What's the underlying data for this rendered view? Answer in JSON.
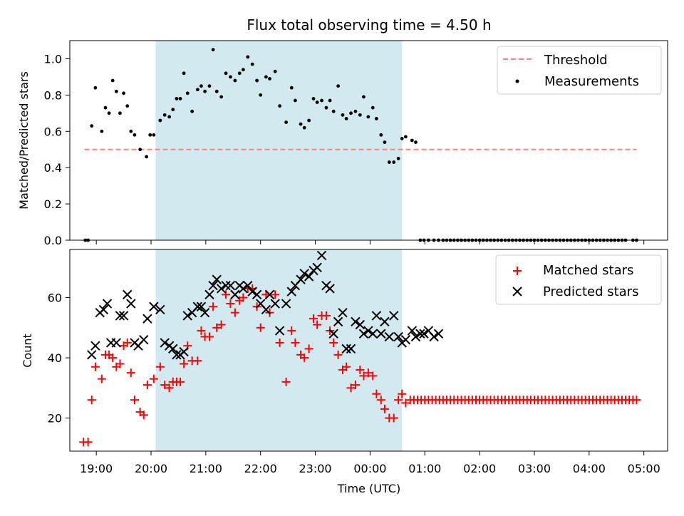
{
  "title": "Flux total observing time = 4.50 h",
  "chart_data": [
    {
      "type": "scatter",
      "ylabel": "Matched/Predicted stars",
      "xlabel": "",
      "ylim": [
        0,
        1.1
      ],
      "xlim": [
        "18:31",
        "05:26"
      ],
      "yticks": [
        0.0,
        0.2,
        0.4,
        0.6,
        0.8,
        1.0
      ],
      "ytick_labels": [
        "0.0",
        "0.2",
        "0.4",
        "0.6",
        "0.8",
        "1.0"
      ],
      "grid": false,
      "legend_position": "top-right",
      "shaded_span": {
        "start": "20:05",
        "end": "00:35",
        "color": "#d3e9f0"
      },
      "threshold": {
        "name": "Threshold",
        "value": 0.5,
        "x_start": "18:47",
        "x_end": "04:52",
        "color": "#ff7f7f",
        "style": "dashed"
      },
      "series": [
        {
          "name": "Measurements",
          "color": "#000000",
          "marker": "dot",
          "x": [
            "18:48",
            "18:51",
            "18:55",
            "18:59",
            "19:06",
            "19:10",
            "19:14",
            "19:18",
            "19:22",
            "19:26",
            "19:30",
            "19:34",
            "19:38",
            "19:42",
            "19:48",
            "19:55",
            "19:59",
            "20:03",
            "20:10",
            "20:15",
            "20:20",
            "20:24",
            "20:28",
            "20:32",
            "20:36",
            "20:40",
            "20:45",
            "20:51",
            "20:55",
            "20:59",
            "21:04",
            "21:08",
            "21:12",
            "21:17",
            "21:22",
            "21:27",
            "21:32",
            "21:37",
            "21:41",
            "21:46",
            "21:51",
            "21:56",
            "22:00",
            "22:06",
            "22:10",
            "22:16",
            "22:21",
            "22:28",
            "22:34",
            "22:38",
            "22:44",
            "22:48",
            "22:53",
            "22:58",
            "23:02",
            "23:07",
            "23:12",
            "23:16",
            "23:20",
            "23:25",
            "23:30",
            "23:34",
            "23:39",
            "23:44",
            "23:49",
            "23:53",
            "23:58",
            "00:03",
            "00:07",
            "00:12",
            "00:16",
            "00:21",
            "00:26",
            "00:31",
            "00:35",
            "00:39",
            "00:46",
            "00:50",
            "00:55",
            "00:59",
            "01:04",
            "01:10",
            "01:15"
          ],
          "y": [
            0.0,
            0.0,
            0.63,
            0.84,
            0.6,
            0.73,
            0.7,
            0.88,
            0.82,
            0.7,
            0.81,
            0.74,
            0.6,
            0.58,
            0.5,
            0.46,
            0.58,
            0.58,
            0.66,
            0.69,
            0.68,
            0.72,
            0.78,
            0.78,
            0.92,
            0.81,
            0.71,
            0.83,
            0.85,
            0.82,
            0.85,
            1.05,
            0.82,
            0.79,
            0.92,
            0.9,
            0.88,
            0.92,
            0.94,
            1.01,
            0.97,
            0.88,
            0.8,
            0.9,
            0.89,
            0.93,
            0.74,
            0.65,
            0.84,
            0.77,
            0.64,
            0.62,
            0.66,
            0.78,
            0.76,
            0.77,
            0.73,
            0.77,
            0.71,
            0.85,
            0.69,
            0.67,
            0.7,
            0.71,
            0.69,
            0.79,
            0.68,
            0.73,
            0.67,
            0.58,
            0.54,
            0.43,
            0.43,
            0.45,
            0.56,
            0.57,
            0.55,
            0.54,
            0.0,
            0.0,
            0.0,
            0.0,
            0.0
          ]
        },
        {
          "name": "",
          "color": "#000000",
          "marker": "dot",
          "x": [
            "01:20",
            "01:24",
            "01:28",
            "01:32",
            "01:36",
            "01:40",
            "01:44",
            "01:48",
            "01:52",
            "01:56",
            "02:00",
            "02:04",
            "02:08",
            "02:12",
            "02:16",
            "02:20",
            "02:24",
            "02:28",
            "02:32",
            "02:36",
            "02:40",
            "02:44",
            "02:48",
            "02:52",
            "02:56",
            "03:00",
            "03:04",
            "03:08",
            "03:12",
            "03:16",
            "03:20",
            "03:24",
            "03:28",
            "03:32",
            "03:36",
            "03:40",
            "03:44",
            "03:48",
            "03:52",
            "03:56",
            "04:00",
            "04:04",
            "04:08",
            "04:12",
            "04:16",
            "04:20",
            "04:24",
            "04:28",
            "04:32",
            "04:36",
            "04:40",
            "04:48",
            "04:52"
          ],
          "y": [
            0.0,
            0.0,
            0.0,
            0.0,
            0.0,
            0.0,
            0.0,
            0.0,
            0.0,
            0.0,
            0.0,
            0.0,
            0.0,
            0.0,
            0.0,
            0.0,
            0.0,
            0.0,
            0.0,
            0.0,
            0.0,
            0.0,
            0.0,
            0.0,
            0.0,
            0.0,
            0.0,
            0.0,
            0.0,
            0.0,
            0.0,
            0.0,
            0.0,
            0.0,
            0.0,
            0.0,
            0.0,
            0.0,
            0.0,
            0.0,
            0.0,
            0.0,
            0.0,
            0.0,
            0.0,
            0.0,
            0.0,
            0.0,
            0.0,
            0.0,
            0.0,
            0.0,
            0.0
          ]
        }
      ]
    },
    {
      "type": "scatter",
      "ylabel": "Count",
      "xlabel": "Time (UTC)",
      "ylim": [
        9,
        76
      ],
      "xlim": [
        "18:31",
        "05:26"
      ],
      "yticks": [
        20,
        40,
        60
      ],
      "ytick_labels": [
        "20",
        "40",
        "60"
      ],
      "xticks": [
        "19:00",
        "20:00",
        "21:00",
        "22:00",
        "23:00",
        "00:00",
        "01:00",
        "02:00",
        "03:00",
        "04:00",
        "05:00"
      ],
      "grid": false,
      "legend_position": "top-right",
      "shaded_span": {
        "start": "20:05",
        "end": "00:35",
        "color": "#d3e9f0"
      },
      "series": [
        {
          "name": "Matched stars",
          "color": "#ff0000",
          "marker": "plus",
          "x": [
            "18:46",
            "18:51",
            "18:55",
            "18:59",
            "19:06",
            "19:10",
            "19:14",
            "19:18",
            "19:22",
            "19:26",
            "19:30",
            "19:34",
            "19:38",
            "19:42",
            "19:48",
            "19:52",
            "19:56",
            "20:03",
            "20:10",
            "20:15",
            "20:20",
            "20:24",
            "20:28",
            "20:32",
            "20:36",
            "20:40",
            "20:45",
            "20:51",
            "20:55",
            "20:59",
            "21:04",
            "21:08",
            "21:12",
            "21:17",
            "21:22",
            "21:27",
            "21:32",
            "21:37",
            "21:41",
            "21:46",
            "21:51",
            "21:56",
            "22:00",
            "22:06",
            "22:10",
            "22:16",
            "22:21",
            "22:28",
            "22:34",
            "22:38",
            "22:44",
            "22:48",
            "22:53",
            "22:58",
            "23:02",
            "23:07",
            "23:12",
            "23:16",
            "23:20",
            "23:25",
            "23:30",
            "23:34",
            "23:39",
            "23:44",
            "23:49",
            "23:53",
            "23:58",
            "00:03",
            "00:07",
            "00:12",
            "00:16",
            "00:21",
            "00:26",
            "00:31",
            "00:35",
            "00:39",
            "00:44",
            "00:48",
            "00:52",
            "00:56",
            "01:00"
          ],
          "y": [
            12,
            12,
            26,
            37,
            33,
            41,
            41,
            40,
            37,
            38,
            44,
            45,
            35,
            26,
            22,
            21,
            31,
            33,
            37,
            31,
            30,
            32,
            32,
            32,
            38,
            44,
            39,
            39,
            49,
            47,
            47,
            57,
            50,
            51,
            61,
            58,
            55,
            59,
            60,
            63,
            63,
            57,
            50,
            61,
            55,
            61,
            45,
            32,
            49,
            45,
            41,
            40,
            43,
            53,
            51,
            54,
            54,
            49,
            45,
            41,
            36,
            37,
            30,
            31,
            36,
            34,
            35,
            34,
            28,
            26,
            23,
            20,
            20,
            26,
            28,
            25,
            26,
            26,
            26,
            26,
            26
          ]
        },
        {
          "name": "",
          "color": "#ff0000",
          "marker": "plus",
          "x": [
            "01:04",
            "01:08",
            "01:12",
            "01:16",
            "01:20",
            "01:24",
            "01:28",
            "01:32",
            "01:36",
            "01:40",
            "01:44",
            "01:48",
            "01:52",
            "01:56",
            "02:00",
            "02:04",
            "02:08",
            "02:12",
            "02:16",
            "02:20",
            "02:24",
            "02:28",
            "02:32",
            "02:36",
            "02:40",
            "02:44",
            "02:48",
            "02:52",
            "02:56",
            "03:00",
            "03:04",
            "03:08",
            "03:12",
            "03:16",
            "03:20",
            "03:24",
            "03:28",
            "03:32",
            "03:36",
            "03:40",
            "03:44",
            "03:48",
            "03:52",
            "03:56",
            "04:00",
            "04:04",
            "04:08",
            "04:12",
            "04:16",
            "04:20",
            "04:24",
            "04:28",
            "04:32",
            "04:36",
            "04:40",
            "04:44",
            "04:48",
            "04:52"
          ],
          "y": [
            26,
            26,
            26,
            26,
            26,
            26,
            26,
            26,
            26,
            26,
            26,
            26,
            26,
            26,
            26,
            26,
            26,
            26,
            26,
            26,
            26,
            26,
            26,
            26,
            26,
            26,
            26,
            26,
            26,
            26,
            26,
            26,
            26,
            26,
            26,
            26,
            26,
            26,
            26,
            26,
            26,
            26,
            26,
            26,
            26,
            26,
            26,
            26,
            26,
            26,
            26,
            26,
            26,
            26,
            26,
            26,
            26,
            26
          ]
        },
        {
          "name": "Predicted stars",
          "color": "#000000",
          "marker": "x",
          "x": [
            "18:55",
            "18:59",
            "19:04",
            "19:08",
            "19:12",
            "19:16",
            "19:22",
            "19:26",
            "19:30",
            "19:34",
            "19:38",
            "19:42",
            "19:46",
            "19:52",
            "19:56",
            "20:03",
            "20:10",
            "20:15",
            "20:20",
            "20:24",
            "20:28",
            "20:32",
            "20:36",
            "20:40",
            "20:45",
            "20:51",
            "20:55",
            "20:59",
            "21:04",
            "21:08",
            "21:12",
            "21:17",
            "21:22",
            "21:27",
            "21:32",
            "21:37",
            "21:41",
            "21:46",
            "21:51",
            "21:56",
            "22:00",
            "22:06",
            "22:10",
            "22:16",
            "22:21",
            "22:28",
            "22:34",
            "22:38",
            "22:44",
            "22:48",
            "22:53",
            "22:58",
            "23:02",
            "23:07",
            "23:12",
            "23:16",
            "23:20",
            "23:25",
            "23:30",
            "23:34",
            "23:39",
            "23:44",
            "23:49",
            "23:53",
            "23:58",
            "00:03",
            "00:07",
            "00:12",
            "00:16",
            "00:21",
            "00:26",
            "00:31",
            "00:35",
            "00:39",
            "00:46",
            "00:50",
            "00:55",
            "00:59",
            "01:04",
            "01:10",
            "01:15"
          ],
          "y": [
            41,
            44,
            55,
            56,
            58,
            45,
            45,
            54,
            54,
            61,
            58,
            45,
            44,
            46,
            53,
            57,
            56,
            45,
            44,
            43,
            41,
            41,
            42,
            54,
            55,
            57,
            57,
            55,
            61,
            64,
            66,
            63,
            64,
            64,
            61,
            64,
            63,
            64,
            62,
            61,
            58,
            56,
            61,
            58,
            49,
            58,
            62,
            64,
            66,
            68,
            67,
            69,
            70,
            74,
            64,
            63,
            48,
            52,
            55,
            43,
            43,
            52,
            51,
            48,
            49,
            48,
            54,
            48,
            52,
            47,
            54,
            47,
            45,
            46,
            49,
            47,
            48,
            48,
            49,
            47,
            48
          ]
        }
      ]
    }
  ]
}
